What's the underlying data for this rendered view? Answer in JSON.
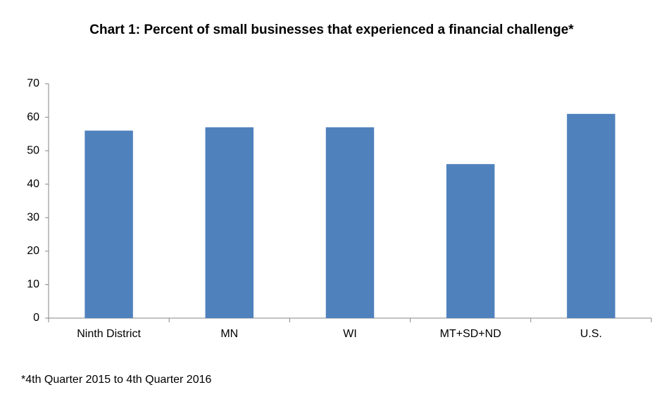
{
  "chart_data": {
    "type": "bar",
    "title": "Chart 1: Percent of small businesses that experienced a financial challenge*",
    "categories": [
      "Ninth District",
      "MN",
      "WI",
      "MT+SD+ND",
      "U.S."
    ],
    "values": [
      56,
      57,
      57,
      46,
      61
    ],
    "color": "#4f81bd",
    "ylim": [
      0,
      70
    ],
    "yticks": [
      0,
      10,
      20,
      30,
      40,
      50,
      60,
      70
    ],
    "grid": false,
    "footnote": "*4th Quarter 2015 to 4th Quarter 2016"
  }
}
